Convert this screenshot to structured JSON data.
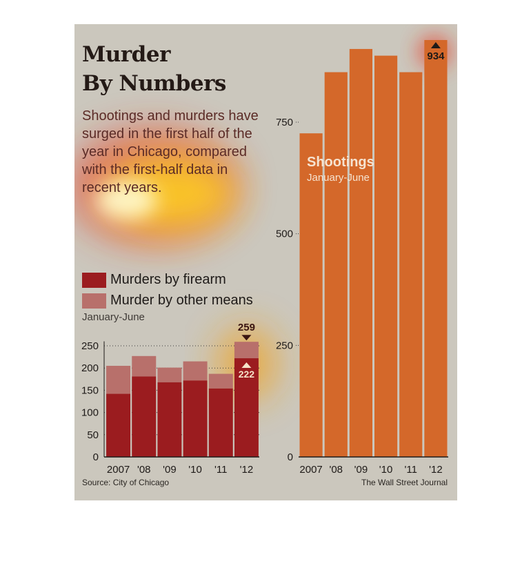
{
  "headline": [
    "Murder",
    "By Numbers"
  ],
  "description": "Shootings and murders have surged in the first half of the year in Chicago, compared with the first-half data in recent years.",
  "legend": [
    {
      "label": "Murders by firearm",
      "color": "#9b1c1f"
    },
    {
      "label": "Murder by other means",
      "color": "#b8706b"
    }
  ],
  "murders_subtitle": "January-June",
  "shootings_label": "Shootings",
  "shootings_subtitle": "January-June",
  "source": "Source: City of Chicago",
  "credit": "The Wall Street Journal",
  "colors": {
    "firearm": "#9b1c1f",
    "other": "#b8706b",
    "shootings": "#d4682a",
    "background": "#cbc7bd"
  },
  "chart_data": [
    {
      "type": "bar",
      "stacked": true,
      "categories": [
        "2007",
        "'08",
        "'09",
        "'10",
        "'11",
        "'12"
      ],
      "series": [
        {
          "name": "Murders by firearm",
          "values": [
            142,
            181,
            168,
            172,
            154,
            222
          ]
        },
        {
          "name": "Murder by other means",
          "values": [
            63,
            46,
            33,
            43,
            33,
            37
          ]
        }
      ],
      "totals": [
        205,
        227,
        201,
        215,
        187,
        259
      ],
      "annotations": [
        {
          "category": "'12",
          "value": 259,
          "label": "259"
        },
        {
          "category": "'12",
          "value": 222,
          "label": "222"
        }
      ],
      "yticks": [
        0,
        50,
        100,
        150,
        200,
        250
      ],
      "ylim": [
        0,
        260
      ],
      "grid": true
    },
    {
      "type": "bar",
      "categories": [
        "2007",
        "'08",
        "'09",
        "'10",
        "'11",
        "'12"
      ],
      "series": [
        {
          "name": "Shootings",
          "values": [
            725,
            862,
            914,
            899,
            862,
            934
          ]
        }
      ],
      "annotations": [
        {
          "category": "'12",
          "value": 934,
          "label": "934"
        }
      ],
      "yticks": [
        0,
        250,
        500,
        750
      ],
      "ylim": [
        0,
        950
      ],
      "grid": true
    }
  ]
}
